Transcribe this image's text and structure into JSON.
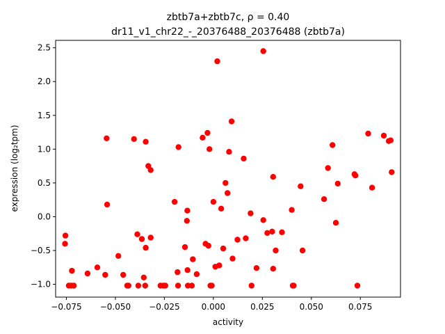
{
  "chart_data": {
    "type": "scatter",
    "title_line1": "zbtb7a+zbtb7c, ρ = 0.40",
    "title_line2": "dr11_v1_chr22_-_20376488_20376488 (zbtb7a)",
    "xlabel": "activity",
    "ylabel": "expression (log₂tpm)",
    "xlim": [
      -0.0805,
      0.0955
    ],
    "ylim": [
      -1.19,
      2.61
    ],
    "xticks": [
      -0.075,
      -0.05,
      -0.025,
      0.0,
      0.025,
      0.05,
      0.075
    ],
    "xtick_labels": [
      "−0.075",
      "−0.050",
      "−0.025",
      "0.000",
      "0.025",
      "0.050",
      "0.075"
    ],
    "yticks": [
      -1.0,
      -0.5,
      0.0,
      0.5,
      1.0,
      1.5,
      2.0,
      2.5
    ],
    "ytick_labels": [
      "−1.0",
      "−0.5",
      "0.0",
      "0.5",
      "1.0",
      "1.5",
      "2.0",
      "2.5"
    ],
    "marker_color": "#ff0000",
    "points": [
      {
        "x": -0.0755,
        "y": -0.28
      },
      {
        "x": -0.0757,
        "y": -0.4
      },
      {
        "x": -0.0738,
        "y": -1.02
      },
      {
        "x": -0.0725,
        "y": -1.02
      },
      {
        "x": -0.0712,
        "y": -1.02
      },
      {
        "x": -0.0722,
        "y": -0.8
      },
      {
        "x": -0.0642,
        "y": -0.84
      },
      {
        "x": -0.0592,
        "y": -0.75
      },
      {
        "x": -0.0552,
        "y": -0.86
      },
      {
        "x": -0.0545,
        "y": 1.16
      },
      {
        "x": -0.0542,
        "y": 0.18
      },
      {
        "x": -0.0485,
        "y": -0.58
      },
      {
        "x": -0.046,
        "y": -0.86
      },
      {
        "x": -0.044,
        "y": -1.02
      },
      {
        "x": -0.0433,
        "y": -1.02
      },
      {
        "x": -0.0405,
        "y": 1.15
      },
      {
        "x": -0.0388,
        "y": -0.26
      },
      {
        "x": -0.0383,
        "y": -1.02
      },
      {
        "x": -0.0365,
        "y": -0.33
      },
      {
        "x": -0.0355,
        "y": -0.9
      },
      {
        "x": -0.0348,
        "y": -1.02
      },
      {
        "x": -0.0345,
        "y": 1.11
      },
      {
        "x": -0.0345,
        "y": -0.46
      },
      {
        "x": -0.0332,
        "y": 0.75
      },
      {
        "x": -0.032,
        "y": 0.69
      },
      {
        "x": -0.032,
        "y": -0.31
      },
      {
        "x": -0.027,
        "y": -1.02
      },
      {
        "x": -0.0255,
        "y": -1.02
      },
      {
        "x": -0.0245,
        "y": -1.02
      },
      {
        "x": -0.0198,
        "y": 0.22
      },
      {
        "x": -0.0183,
        "y": -0.82
      },
      {
        "x": -0.018,
        "y": -1.02
      },
      {
        "x": -0.0178,
        "y": 1.03
      },
      {
        "x": -0.0145,
        "y": -0.45
      },
      {
        "x": -0.0135,
        "y": -0.06
      },
      {
        "x": -0.0133,
        "y": 0.09
      },
      {
        "x": -0.0132,
        "y": -0.79
      },
      {
        "x": -0.013,
        "y": -1.02
      },
      {
        "x": -0.011,
        "y": -1.02
      },
      {
        "x": -0.0105,
        "y": -0.63
      },
      {
        "x": -0.0085,
        "y": -0.85
      },
      {
        "x": -0.0055,
        "y": 1.17
      },
      {
        "x": -0.004,
        "y": -0.4
      },
      {
        "x": -0.003,
        "y": 1.24
      },
      {
        "x": -0.0025,
        "y": -0.43
      },
      {
        "x": -0.002,
        "y": 1.0
      },
      {
        "x": -0.0015,
        "y": -1.02
      },
      {
        "x": -0.0008,
        "y": -1.02
      },
      {
        "x": 0.0,
        "y": 0.22
      },
      {
        "x": 0.001,
        "y": -0.74
      },
      {
        "x": 0.002,
        "y": 2.3
      },
      {
        "x": 0.003,
        "y": -0.72
      },
      {
        "x": 0.004,
        "y": 0.12
      },
      {
        "x": 0.005,
        "y": -0.47
      },
      {
        "x": 0.0062,
        "y": 0.5
      },
      {
        "x": 0.0072,
        "y": 0.35
      },
      {
        "x": 0.008,
        "y": 0.96
      },
      {
        "x": 0.0093,
        "y": 1.41
      },
      {
        "x": 0.0098,
        "y": -0.62
      },
      {
        "x": 0.0123,
        "y": -0.34
      },
      {
        "x": 0.0155,
        "y": 0.86
      },
      {
        "x": 0.0165,
        "y": -0.32
      },
      {
        "x": 0.019,
        "y": 0.05
      },
      {
        "x": 0.0195,
        "y": -1.02
      },
      {
        "x": 0.022,
        "y": -0.76
      },
      {
        "x": 0.0255,
        "y": 2.45
      },
      {
        "x": 0.0255,
        "y": -0.05
      },
      {
        "x": 0.0275,
        "y": -0.24
      },
      {
        "x": 0.03,
        "y": -0.22
      },
      {
        "x": 0.0305,
        "y": -0.77
      },
      {
        "x": 0.0305,
        "y": 0.59
      },
      {
        "x": 0.0318,
        "y": -0.5
      },
      {
        "x": 0.035,
        "y": -0.23
      },
      {
        "x": 0.04,
        "y": 0.1
      },
      {
        "x": 0.0405,
        "y": -1.02
      },
      {
        "x": 0.041,
        "y": -1.02
      },
      {
        "x": 0.0445,
        "y": 0.45
      },
      {
        "x": 0.0455,
        "y": -0.5
      },
      {
        "x": 0.0565,
        "y": 0.26
      },
      {
        "x": 0.0585,
        "y": 0.72
      },
      {
        "x": 0.0608,
        "y": 1.06
      },
      {
        "x": 0.0625,
        "y": -0.09
      },
      {
        "x": 0.0635,
        "y": 0.49
      },
      {
        "x": 0.072,
        "y": 0.63
      },
      {
        "x": 0.0725,
        "y": 0.61
      },
      {
        "x": 0.0735,
        "y": -1.02
      },
      {
        "x": 0.079,
        "y": 1.23
      },
      {
        "x": 0.081,
        "y": 0.43
      },
      {
        "x": 0.087,
        "y": 1.2
      },
      {
        "x": 0.0895,
        "y": 1.12
      },
      {
        "x": 0.0905,
        "y": 1.13
      },
      {
        "x": 0.091,
        "y": 0.66
      }
    ]
  }
}
